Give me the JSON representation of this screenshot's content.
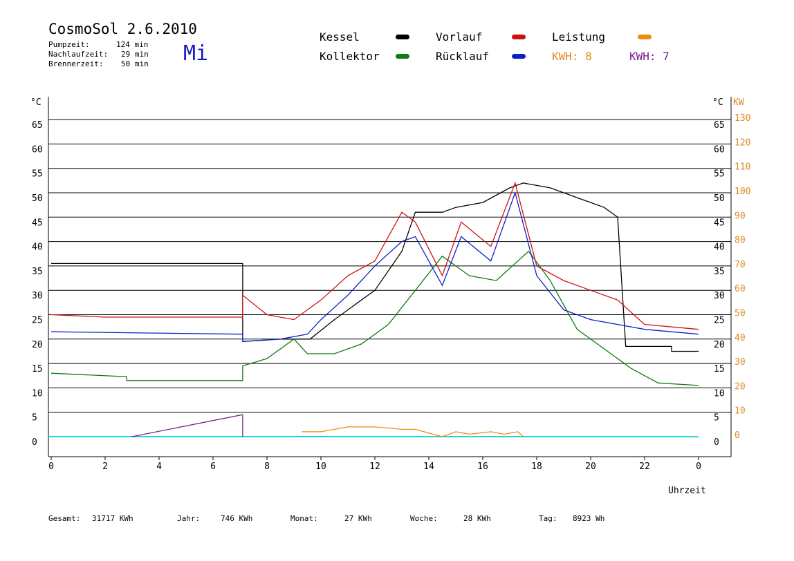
{
  "header": {
    "title": "CosmoSol 2.6.2010",
    "day": "Mi",
    "stats": [
      {
        "label": "Pumpzeit:",
        "value": "124 min"
      },
      {
        "label": "Nachlaufzeit:",
        "value": "29 min"
      },
      {
        "label": "Brennerzeit:",
        "value": "50 min"
      }
    ]
  },
  "legend": {
    "kessel": "Kessel",
    "kollektor": "Kollektor",
    "vorlauf": "Vorlauf",
    "ruecklauf": "Rücklauf",
    "leistung": "Leistung",
    "kwh_a": "KWH: 8",
    "kwh_b": "KWH: 7"
  },
  "colors": {
    "kessel": "#000000",
    "kollektor": "#0f7a0f",
    "vorlauf": "#d01010",
    "ruecklauf": "#1020c8",
    "leistung": "#f08a10",
    "kwh_b": "#7a2090",
    "pump": "#22d4d4",
    "axis_right": "#e08a20"
  },
  "footer": {
    "gesamt_label": "Gesamt:",
    "gesamt_value": "31717 KWh",
    "jahr_label": "Jahr:",
    "jahr_value": "746 KWh",
    "monat_label": "Monat:",
    "monat_value": "27 KWh",
    "woche_label": "Woche:",
    "woche_value": "28 KWh",
    "tag_label": "Tag:",
    "tag_value": "8923 Wh"
  },
  "chart_data": {
    "type": "line",
    "xlabel": "Uhrzeit",
    "ylabel_left": "°C",
    "ylabel_right_unit": "°C",
    "ylabel_right_kw": "KW",
    "xlim": [
      0,
      24
    ],
    "ylim": [
      -5,
      70
    ],
    "x_ticks": [
      "0",
      "2",
      "4",
      "6",
      "8",
      "10",
      "12",
      "14",
      "16",
      "18",
      "20",
      "22",
      "0"
    ],
    "y_ticks_left": [
      "0",
      "5",
      "10",
      "15",
      "20",
      "25",
      "30",
      "35",
      "40",
      "45",
      "50",
      "55",
      "60",
      "65"
    ],
    "y_ticks_right_c": [
      "0",
      "5",
      "10",
      "15",
      "20",
      "25",
      "30",
      "35",
      "40",
      "45",
      "50",
      "55",
      "60",
      "65"
    ],
    "y_ticks_right_kw": [
      "0",
      "10",
      "20",
      "30",
      "40",
      "50",
      "60",
      "70",
      "80",
      "90",
      "100",
      "110",
      "120",
      "130"
    ],
    "grid": true,
    "series": [
      {
        "name": "Kessel",
        "x": [
          0,
          7.1,
          7.1,
          8.5,
          9.6,
          10.5,
          12,
          13,
          13.5,
          14.5,
          15,
          16,
          17,
          17.5,
          18.5,
          19.5,
          20.5,
          21,
          21.3,
          23,
          23,
          24
        ],
        "y": [
          35.5,
          35.5,
          19.5,
          20,
          20,
          24,
          30,
          38,
          46,
          46,
          47,
          48,
          51,
          52,
          51,
          49,
          47,
          45,
          18.5,
          18.5,
          17.5,
          17.5
        ]
      },
      {
        "name": "Kollektor",
        "x": [
          0,
          2.8,
          2.8,
          7.1,
          7.1,
          8,
          9,
          9.5,
          10.5,
          11.5,
          12.5,
          13.5,
          14.5,
          15.5,
          16.5,
          17.3,
          17.7,
          18.5,
          19.5,
          20.5,
          21.5,
          22.5,
          24
        ],
        "y": [
          13,
          12.3,
          11.5,
          11.5,
          14.5,
          16,
          20,
          17,
          17,
          19,
          23,
          30,
          37,
          33,
          32,
          36,
          38,
          32,
          22,
          18,
          14,
          11,
          10.5
        ]
      },
      {
        "name": "Vorlauf",
        "x": [
          0,
          2,
          7.1,
          7.1,
          8,
          9,
          10,
          11,
          12,
          13,
          13.5,
          14.5,
          15.2,
          16.3,
          17.2,
          18,
          19,
          20,
          21,
          22,
          24
        ],
        "y": [
          25,
          24.5,
          24.5,
          29,
          25,
          24,
          28,
          33,
          36,
          46,
          44,
          33,
          44,
          39,
          52,
          35,
          32,
          30,
          28,
          23,
          22
        ]
      },
      {
        "name": "Rücklauf",
        "x": [
          0,
          7.1,
          7.1,
          8.5,
          9.5,
          10,
          11,
          12,
          13,
          13.5,
          14.5,
          15.2,
          16.3,
          17.2,
          18,
          19,
          20,
          21,
          22,
          24
        ],
        "y": [
          21.5,
          21,
          19.5,
          20,
          21,
          24,
          29,
          35,
          40,
          41,
          31,
          41,
          36,
          50,
          33,
          26,
          24,
          23,
          22,
          21
        ]
      },
      {
        "name": "Leistung",
        "x": [
          9.3,
          10,
          11,
          12,
          13,
          13.5,
          14.5,
          15,
          15.5,
          16.3,
          16.8,
          17.3,
          17.5
        ],
        "y": [
          1,
          1,
          2,
          2,
          1.5,
          1.5,
          0,
          1,
          0.5,
          1,
          0.5,
          1,
          0
        ]
      },
      {
        "name": "KWH: 7",
        "x": [
          3,
          7.1,
          7.1
        ],
        "y": [
          0,
          4.5,
          0
        ]
      }
    ]
  }
}
